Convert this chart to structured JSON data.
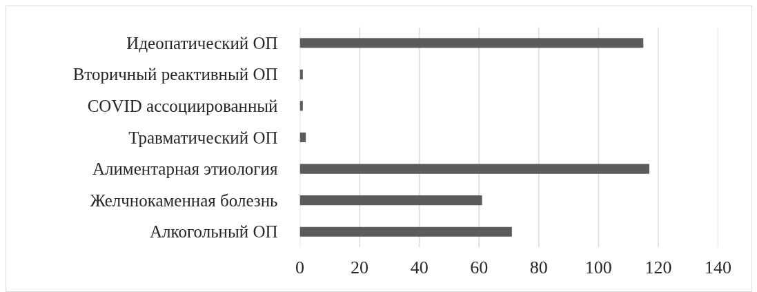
{
  "chart_data": {
    "type": "bar",
    "orientation": "horizontal",
    "categories": [
      "Идеопатический ОП",
      "Вторичный реактивный ОП",
      "COVID ассоциированный",
      "Травматический ОП",
      "Алиментарная этиология",
      "Желчнокаменная болезнь",
      "Алкогольный ОП"
    ],
    "values": [
      115,
      1,
      1,
      2,
      117,
      61,
      71
    ],
    "color": "#5b5b5b",
    "xlim": [
      0,
      140
    ],
    "xticks": [
      0,
      20,
      40,
      60,
      80,
      100,
      120,
      140
    ],
    "grid": "x"
  }
}
